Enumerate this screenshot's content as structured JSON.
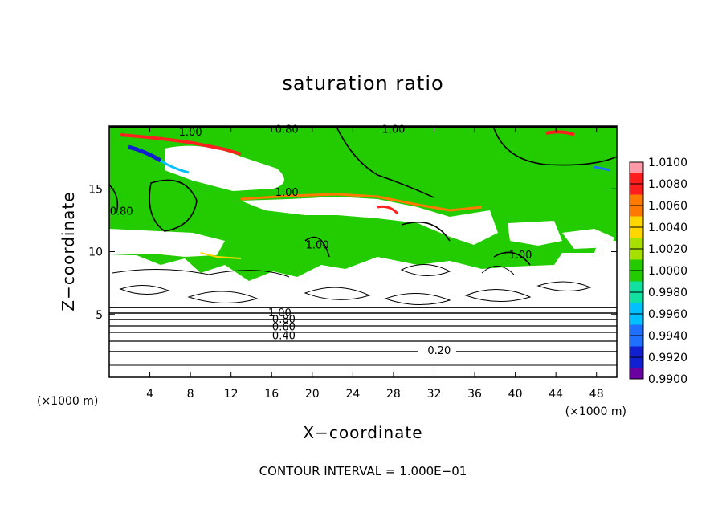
{
  "chart_data": {
    "type": "heatmap",
    "title": "saturation ratio",
    "xlabel": "X−coordinate",
    "ylabel": "Z−coordinate",
    "x_unit": "(×1000 m)",
    "y_unit": "(×1000 m)",
    "xlim": [
      0,
      50
    ],
    "ylim": [
      0,
      20
    ],
    "x_ticks": [
      4,
      8,
      12,
      16,
      20,
      24,
      28,
      32,
      36,
      40,
      44,
      48
    ],
    "y_ticks": [
      5,
      10,
      15
    ],
    "colorbar": {
      "levels": [
        "1.0100",
        "1.0080",
        "1.0060",
        "1.0040",
        "1.0020",
        "1.0000",
        "0.9980",
        "0.9960",
        "0.9940",
        "0.9920",
        "0.9900"
      ],
      "colors": [
        "#ff9aa6",
        "#ff1e1e",
        "#ff7a00",
        "#ffd700",
        "#a6e000",
        "#22cc00",
        "#10e0a0",
        "#00c0ff",
        "#2070ff",
        "#1020d0",
        "#6a00a0"
      ]
    },
    "contour_labels": [
      {
        "text": "1.00",
        "x": 8,
        "z": 19.5
      },
      {
        "text": "0.80",
        "x": 17.5,
        "z": 19.7
      },
      {
        "text": "1.00",
        "x": 28,
        "z": 19.7
      },
      {
        "text": "1.00",
        "x": 17.5,
        "z": 14.7
      },
      {
        "text": "0.80",
        "x": 1.2,
        "z": 13.2
      },
      {
        "text": "1.00",
        "x": 20.5,
        "z": 10.5
      },
      {
        "text": "1.00",
        "x": 40.5,
        "z": 9.7
      },
      {
        "text": "1.00",
        "x": 16.8,
        "z": 5.1
      },
      {
        "text": "0.80",
        "x": 17.2,
        "z": 4.6
      },
      {
        "text": "0.60",
        "x": 17.2,
        "z": 4.0
      },
      {
        "text": "0.40",
        "x": 17.2,
        "z": 3.3
      },
      {
        "text": "0.20",
        "x": 32.5,
        "z": 2.1
      }
    ],
    "contour_interval_text": "CONTOUR INTERVAL = 1.000E−01"
  }
}
